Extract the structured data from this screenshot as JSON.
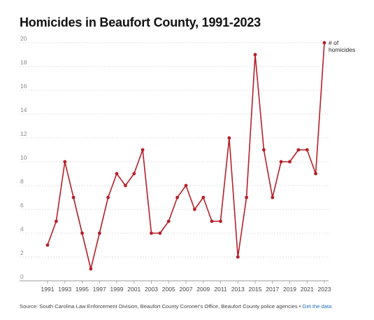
{
  "chart_data": {
    "type": "line",
    "title": "Homicides in Beaufort County, 1991-2023",
    "x": [
      1991,
      1992,
      1993,
      1994,
      1995,
      1996,
      1997,
      1998,
      1999,
      2000,
      2001,
      2002,
      2003,
      2004,
      2005,
      2006,
      2007,
      2008,
      2009,
      2010,
      2011,
      2012,
      2013,
      2014,
      2015,
      2016,
      2017,
      2018,
      2019,
      2020,
      2021,
      2022,
      2023
    ],
    "series": [
      {
        "name": "# of homicides",
        "values": [
          3,
          5,
          10,
          7,
          4,
          1,
          4,
          7,
          9,
          8,
          9,
          11,
          4,
          4,
          5,
          7,
          8,
          6,
          7,
          5,
          5,
          12,
          2,
          7,
          19,
          11,
          7,
          10,
          10,
          11,
          11,
          9,
          20
        ]
      }
    ],
    "x_tick_labels": [
      "1991",
      "1993",
      "1995",
      "1997",
      "1999",
      "2001",
      "2003",
      "2005",
      "2007",
      "2009",
      "2011",
      "2013",
      "2015",
      "2017",
      "2019",
      "2021",
      "2023"
    ],
    "y_ticks": [
      0,
      2,
      4,
      6,
      8,
      10,
      12,
      14,
      16,
      18,
      20
    ],
    "ylim": [
      0,
      20
    ],
    "xlim": [
      1991,
      2023
    ],
    "grid": "horizontal dashed",
    "legend": "end-label",
    "color": "#b5202a"
  },
  "source": {
    "text": "Source: South Carolina Law Enforcement Division, Beaufort County Coroner's Office, Beaufort County police agencies • ",
    "link": "Get the data"
  }
}
